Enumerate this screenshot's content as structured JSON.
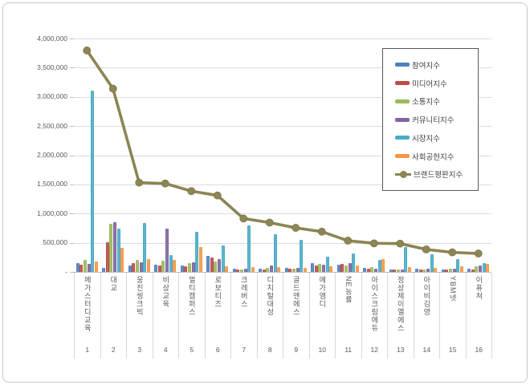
{
  "chart_data": {
    "type": "bar",
    "subtype": "grouped-bars-with-line-overlay",
    "title": "",
    "xlabel": "",
    "ylabel": "",
    "ylim": [
      0,
      4000000
    ],
    "grid": true,
    "legend_position": "top-right",
    "y_ticks": [
      "4,000,000",
      "3,500,000",
      "3,000,000",
      "2,500,000",
      "2,000,000",
      "1,500,000",
      "1,000,000",
      "500,000",
      "-"
    ],
    "categories": [
      "메가스터디교육",
      "대교",
      "웅진씽크빅",
      "비상교육",
      "멀티캠퍼스",
      "로보티즈",
      "크레버스",
      "디지털대성",
      "골드앤에스",
      "메가엠디",
      "NE능률",
      "아이스크림에듀",
      "정상제이엘에스",
      "아이비김영",
      "YBM넷",
      "이퓨쳐"
    ],
    "category_numbers": [
      "1",
      "2",
      "3",
      "4",
      "5",
      "6",
      "7",
      "8",
      "9",
      "10",
      "11",
      "12",
      "13",
      "14",
      "15",
      "16"
    ],
    "series": [
      {
        "name": "참여지수",
        "type": "bar",
        "color": "#4F81BD",
        "values": [
          150000,
          70000,
          110000,
          130000,
          115000,
          275000,
          55000,
          60000,
          73000,
          145000,
          124000,
          69000,
          48000,
          55000,
          36000,
          55000
        ]
      },
      {
        "name": "미디어지수",
        "type": "bar",
        "color": "#BE4B48",
        "values": [
          125000,
          515000,
          150000,
          105000,
          93000,
          243000,
          46000,
          46000,
          60000,
          115000,
          138000,
          62000,
          48000,
          48000,
          36000,
          48000
        ]
      },
      {
        "name": "소통지수",
        "type": "bar",
        "color": "#9BBB59",
        "values": [
          205000,
          825000,
          205000,
          193000,
          150000,
          183000,
          41000,
          69000,
          50000,
          138000,
          106000,
          76000,
          41000,
          48000,
          55000,
          92000
        ]
      },
      {
        "name": "커뮤니티지수",
        "type": "bar",
        "color": "#8064A2",
        "values": [
          140000,
          850000,
          165000,
          748000,
          170000,
          216000,
          55000,
          115000,
          69000,
          125000,
          147000,
          62000,
          48000,
          55000,
          60000,
          115000
        ]
      },
      {
        "name": "시장지수",
        "type": "bar",
        "color": "#4BACC6",
        "values": [
          3100000,
          745000,
          840000,
          285000,
          690000,
          450000,
          800000,
          640000,
          550000,
          255000,
          310000,
          207000,
          420000,
          307000,
          220000,
          150000
        ]
      },
      {
        "name": "사회공헌지수",
        "type": "bar",
        "color": "#F79646",
        "values": [
          185000,
          415000,
          220000,
          207000,
          422000,
          92000,
          83000,
          78000,
          64000,
          92000,
          115000,
          225000,
          76000,
          69000,
          100000,
          138000
        ]
      },
      {
        "name": "브랜드평판지수",
        "type": "line",
        "color": "#8C8554",
        "values": [
          3795000,
          3140000,
          1530000,
          1515000,
          1385000,
          1310000,
          915000,
          845000,
          755000,
          690000,
          535000,
          490000,
          485000,
          385000,
          335000,
          315000
        ]
      }
    ]
  }
}
